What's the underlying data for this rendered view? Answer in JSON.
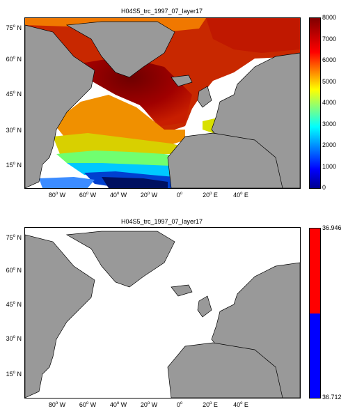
{
  "panels": [
    {
      "title": "H04S5_trc_1997_07_layer17",
      "colorbar": {
        "type": "jet",
        "ticks": [
          "8000",
          "7000",
          "6000",
          "5000",
          "4000",
          "3000",
          "2000",
          "1000",
          "0"
        ],
        "range": [
          0,
          8000
        ]
      }
    },
    {
      "title": "H04S5_trc_1997_07_layer17",
      "colorbar": {
        "type": "two-color",
        "top_color": "#ff0000",
        "bottom_color": "#0000ff",
        "max_label": "36.946",
        "min_label": "36.712"
      }
    }
  ],
  "axes": {
    "lon_labels": [
      {
        "deg": "80",
        "dir": "W"
      },
      {
        "deg": "60",
        "dir": "W"
      },
      {
        "deg": "40",
        "dir": "W"
      },
      {
        "deg": "20",
        "dir": "W"
      },
      {
        "deg": "0",
        "dir": ""
      },
      {
        "deg": "20",
        "dir": "E"
      },
      {
        "deg": "40",
        "dir": "E"
      }
    ],
    "lat_labels": [
      {
        "deg": "75",
        "dir": "N"
      },
      {
        "deg": "60",
        "dir": "N"
      },
      {
        "deg": "45",
        "dir": "N"
      },
      {
        "deg": "30",
        "dir": "N"
      },
      {
        "deg": "15",
        "dir": "N"
      }
    ]
  },
  "colors": {
    "land": "#999999",
    "ocean_nodata": "#ffffff"
  }
}
